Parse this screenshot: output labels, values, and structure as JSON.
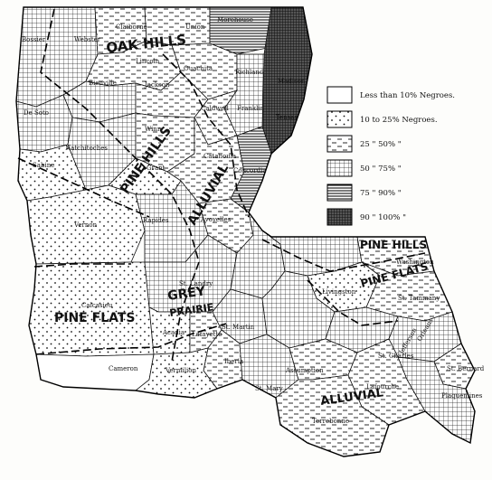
{
  "legend": [
    {
      "pattern": "white",
      "label": "Less than 10% Negroes."
    },
    {
      "pattern": "dots",
      "label": "10 to  25% Negroes."
    },
    {
      "pattern": "dashes",
      "label": "25  \"   50%  \"  "
    },
    {
      "pattern": "grid",
      "label": "50  \"   75%  \"  "
    },
    {
      "pattern": "hlines",
      "label": "75  \"   90%  \"  "
    },
    {
      "pattern": "dense",
      "label": "90  \"  100%  \"  "
    }
  ],
  "regions": {
    "oak_hills": "OAK HILLS",
    "pine_hills_north": "PINE  HILLS",
    "pine_hills_east": "PINE HILLS",
    "alluvial_north": "ALLUVIAL",
    "pine_flats_west": "PINE FLATS",
    "pine_flats_east": "PINE FLATS",
    "grey_prairie": "GREY",
    "prairie": "PRAIRIE",
    "alluvial_south": "ALLUVIAL"
  },
  "parishes": {
    "claiborne": "Claiborne",
    "union": "Union",
    "morehouse": "Morehouse",
    "bossier": "Bossier",
    "webster": "Webster",
    "lincoln": "Lincoln",
    "ouachita": "Ouachita",
    "richland": "Richland",
    "madison": "Madison",
    "bienville": "Bienville",
    "jackson": "Jackson",
    "caldwell": "Caldwell",
    "franklin": "Franklin",
    "tensas": "Tensas",
    "de_soto": "De Soto",
    "natchitoches": "Natchitoches",
    "winn": "Winn",
    "grant": "Grant",
    "catahoula": "Catahoula",
    "concordia": "Concordia",
    "sabine": "Sabine",
    "vernon": "Vernon",
    "rapides": "Rapides",
    "avoyelles": "Avoyelles",
    "calcasieu": "Calcasieu",
    "st_landry": "St. Landry",
    "acadia": "Acadia",
    "lafayette": "Lafayette",
    "st_martin": "St. Martin",
    "iberia": "Iberia",
    "cameron": "Cameron",
    "vermilion": "Vermilion",
    "st_mary": "St. Mary",
    "assumption": "Assumption",
    "lafourche": "Lafourche",
    "terrebonne": "Terrebonne",
    "st_charles": "St. Charles",
    "st_bernard": "St. Bernard",
    "plaquemines": "Plaquemines",
    "washington": "Washington",
    "st_tammany": "St. Tammany",
    "livingston": "Livingston",
    "orleans": "Orleans",
    "jefferson": "Jefferson"
  }
}
